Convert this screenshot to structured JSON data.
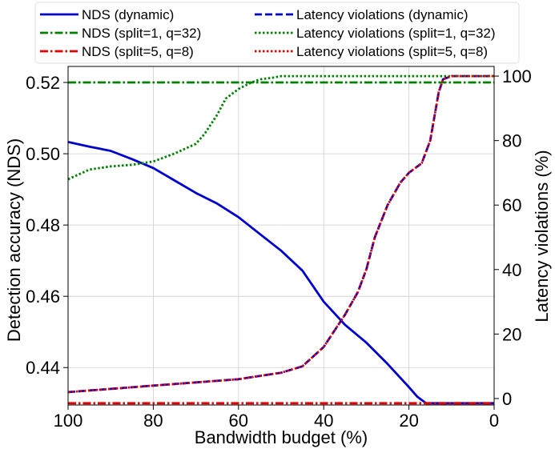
{
  "chart_data": {
    "type": "line",
    "xlabel": "Bandwidth budget (%)",
    "ylabel_left": "Detection accuracy (NDS)",
    "ylabel_right": "Latency violations (%)",
    "x_range": [
      100,
      0
    ],
    "x_inverted": true,
    "y_left_range": [
      0.4295,
      0.5245
    ],
    "y_right_range": [
      -2,
      103
    ],
    "x_ticks": [
      100,
      80,
      60,
      40,
      20,
      0
    ],
    "y_left_ticks": [
      0.44,
      0.46,
      0.48,
      0.5,
      0.52
    ],
    "y_left_tick_labels": [
      "0.44",
      "0.46",
      "0.48",
      "0.50",
      "0.52"
    ],
    "y_right_ticks": [
      0,
      20,
      40,
      60,
      80,
      100
    ],
    "grid": true,
    "legend_position": "top, outside plot, two columns",
    "series": [
      {
        "name": "NDS (dynamic)",
        "axis": "left",
        "color": "#0000cc",
        "style": "solid",
        "x": [
          100,
          95,
          90,
          85,
          80,
          75,
          70,
          65,
          60,
          55,
          50,
          45,
          40,
          35,
          30,
          25,
          20,
          18,
          16,
          15,
          10,
          5,
          0
        ],
        "values": [
          0.5033,
          0.502,
          0.5008,
          0.4985,
          0.496,
          0.4925,
          0.489,
          0.486,
          0.4822,
          0.4775,
          0.4728,
          0.4672,
          0.4585,
          0.452,
          0.447,
          0.441,
          0.4345,
          0.4318,
          0.43,
          0.43,
          0.43,
          0.43,
          0.43
        ]
      },
      {
        "name": "NDS (split=1, q=32)",
        "axis": "left",
        "color": "#008000",
        "style": "dashdot",
        "x": [
          100,
          0
        ],
        "values": [
          0.52,
          0.52
        ]
      },
      {
        "name": "NDS (split=5, q=8)",
        "axis": "left",
        "color": "#e00000",
        "style": "dashdot",
        "x": [
          100,
          0
        ],
        "values": [
          0.43,
          0.43
        ]
      },
      {
        "name": "Latency violations (dynamic)",
        "axis": "right",
        "color": "#0000cc",
        "style": "dashed",
        "x": [
          100,
          90,
          80,
          70,
          60,
          55,
          50,
          45,
          40,
          38,
          35,
          32,
          30,
          28,
          25,
          22,
          20,
          17,
          15,
          13,
          12,
          10,
          5,
          0
        ],
        "values": [
          2,
          3,
          4,
          5,
          6,
          7,
          8,
          10,
          16,
          20,
          26,
          33,
          40,
          50,
          60,
          67,
          70,
          73,
          80,
          95,
          99,
          100,
          100,
          100
        ]
      },
      {
        "name": "Latency violations (split=1, q=32)",
        "axis": "right",
        "color": "#008000",
        "style": "dotted",
        "x": [
          100,
          95,
          90,
          85,
          80,
          75,
          70,
          68,
          65,
          63,
          60,
          57,
          55,
          52,
          50,
          45,
          40,
          30,
          20,
          10,
          0
        ],
        "values": [
          68,
          71,
          72,
          72.5,
          73.5,
          76,
          79,
          82,
          88,
          93,
          96,
          98,
          99,
          99.5,
          100,
          100,
          100,
          100,
          100,
          100,
          100
        ]
      },
      {
        "name": "Latency violations (split=5, q=8)",
        "axis": "right",
        "color": "#e00000",
        "style": "dotted",
        "x": [
          100,
          90,
          80,
          70,
          60,
          55,
          50,
          45,
          40,
          38,
          35,
          32,
          30,
          28,
          25,
          22,
          20,
          17,
          15,
          13,
          12,
          10,
          5,
          0
        ],
        "values": [
          2,
          3,
          4,
          5,
          6,
          7,
          8,
          10,
          16,
          20,
          26,
          33,
          40,
          50,
          60,
          67,
          70,
          73,
          80,
          95,
          99,
          100,
          100,
          100
        ]
      }
    ],
    "legend": [
      "NDS (dynamic)",
      "Latency violations (dynamic)",
      "NDS (split=1, q=32)",
      "Latency violations (split=1, q=32)",
      "NDS (split=5, q=8)",
      "Latency violations (split=5, q=8)"
    ]
  }
}
